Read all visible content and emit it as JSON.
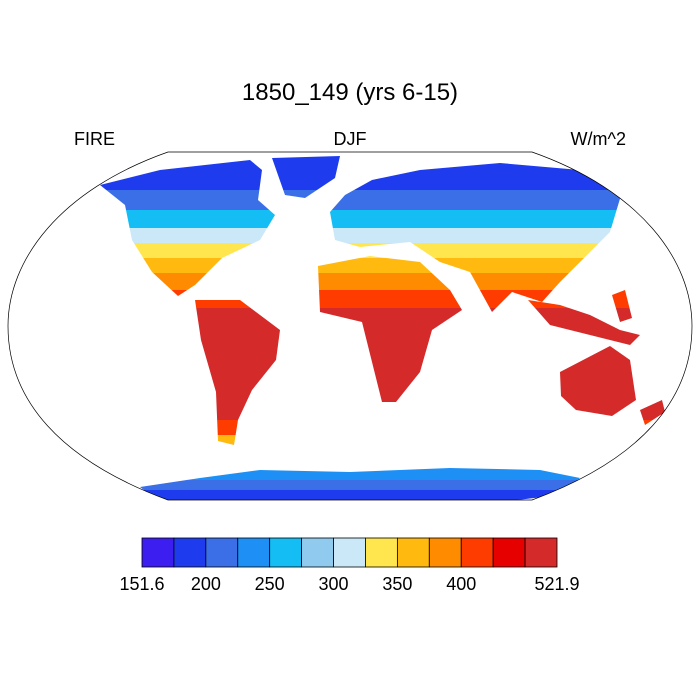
{
  "title": "1850_149 (yrs 6-15)",
  "left_label": "FIRE",
  "center_label": "DJF",
  "right_label": "W/m^2",
  "colorbar": {
    "colors": [
      "#3c1ef0",
      "#1e3ced",
      "#3a6fe8",
      "#1e90f5",
      "#14bef5",
      "#90caef",
      "#cae8f7",
      "#ffe64e",
      "#ffb90f",
      "#ff8c00",
      "#ff3c00",
      "#e60000",
      "#d42a2a"
    ],
    "labels": [
      "151.6",
      "200",
      "250",
      "300",
      "350",
      "400",
      "521.9"
    ]
  }
}
